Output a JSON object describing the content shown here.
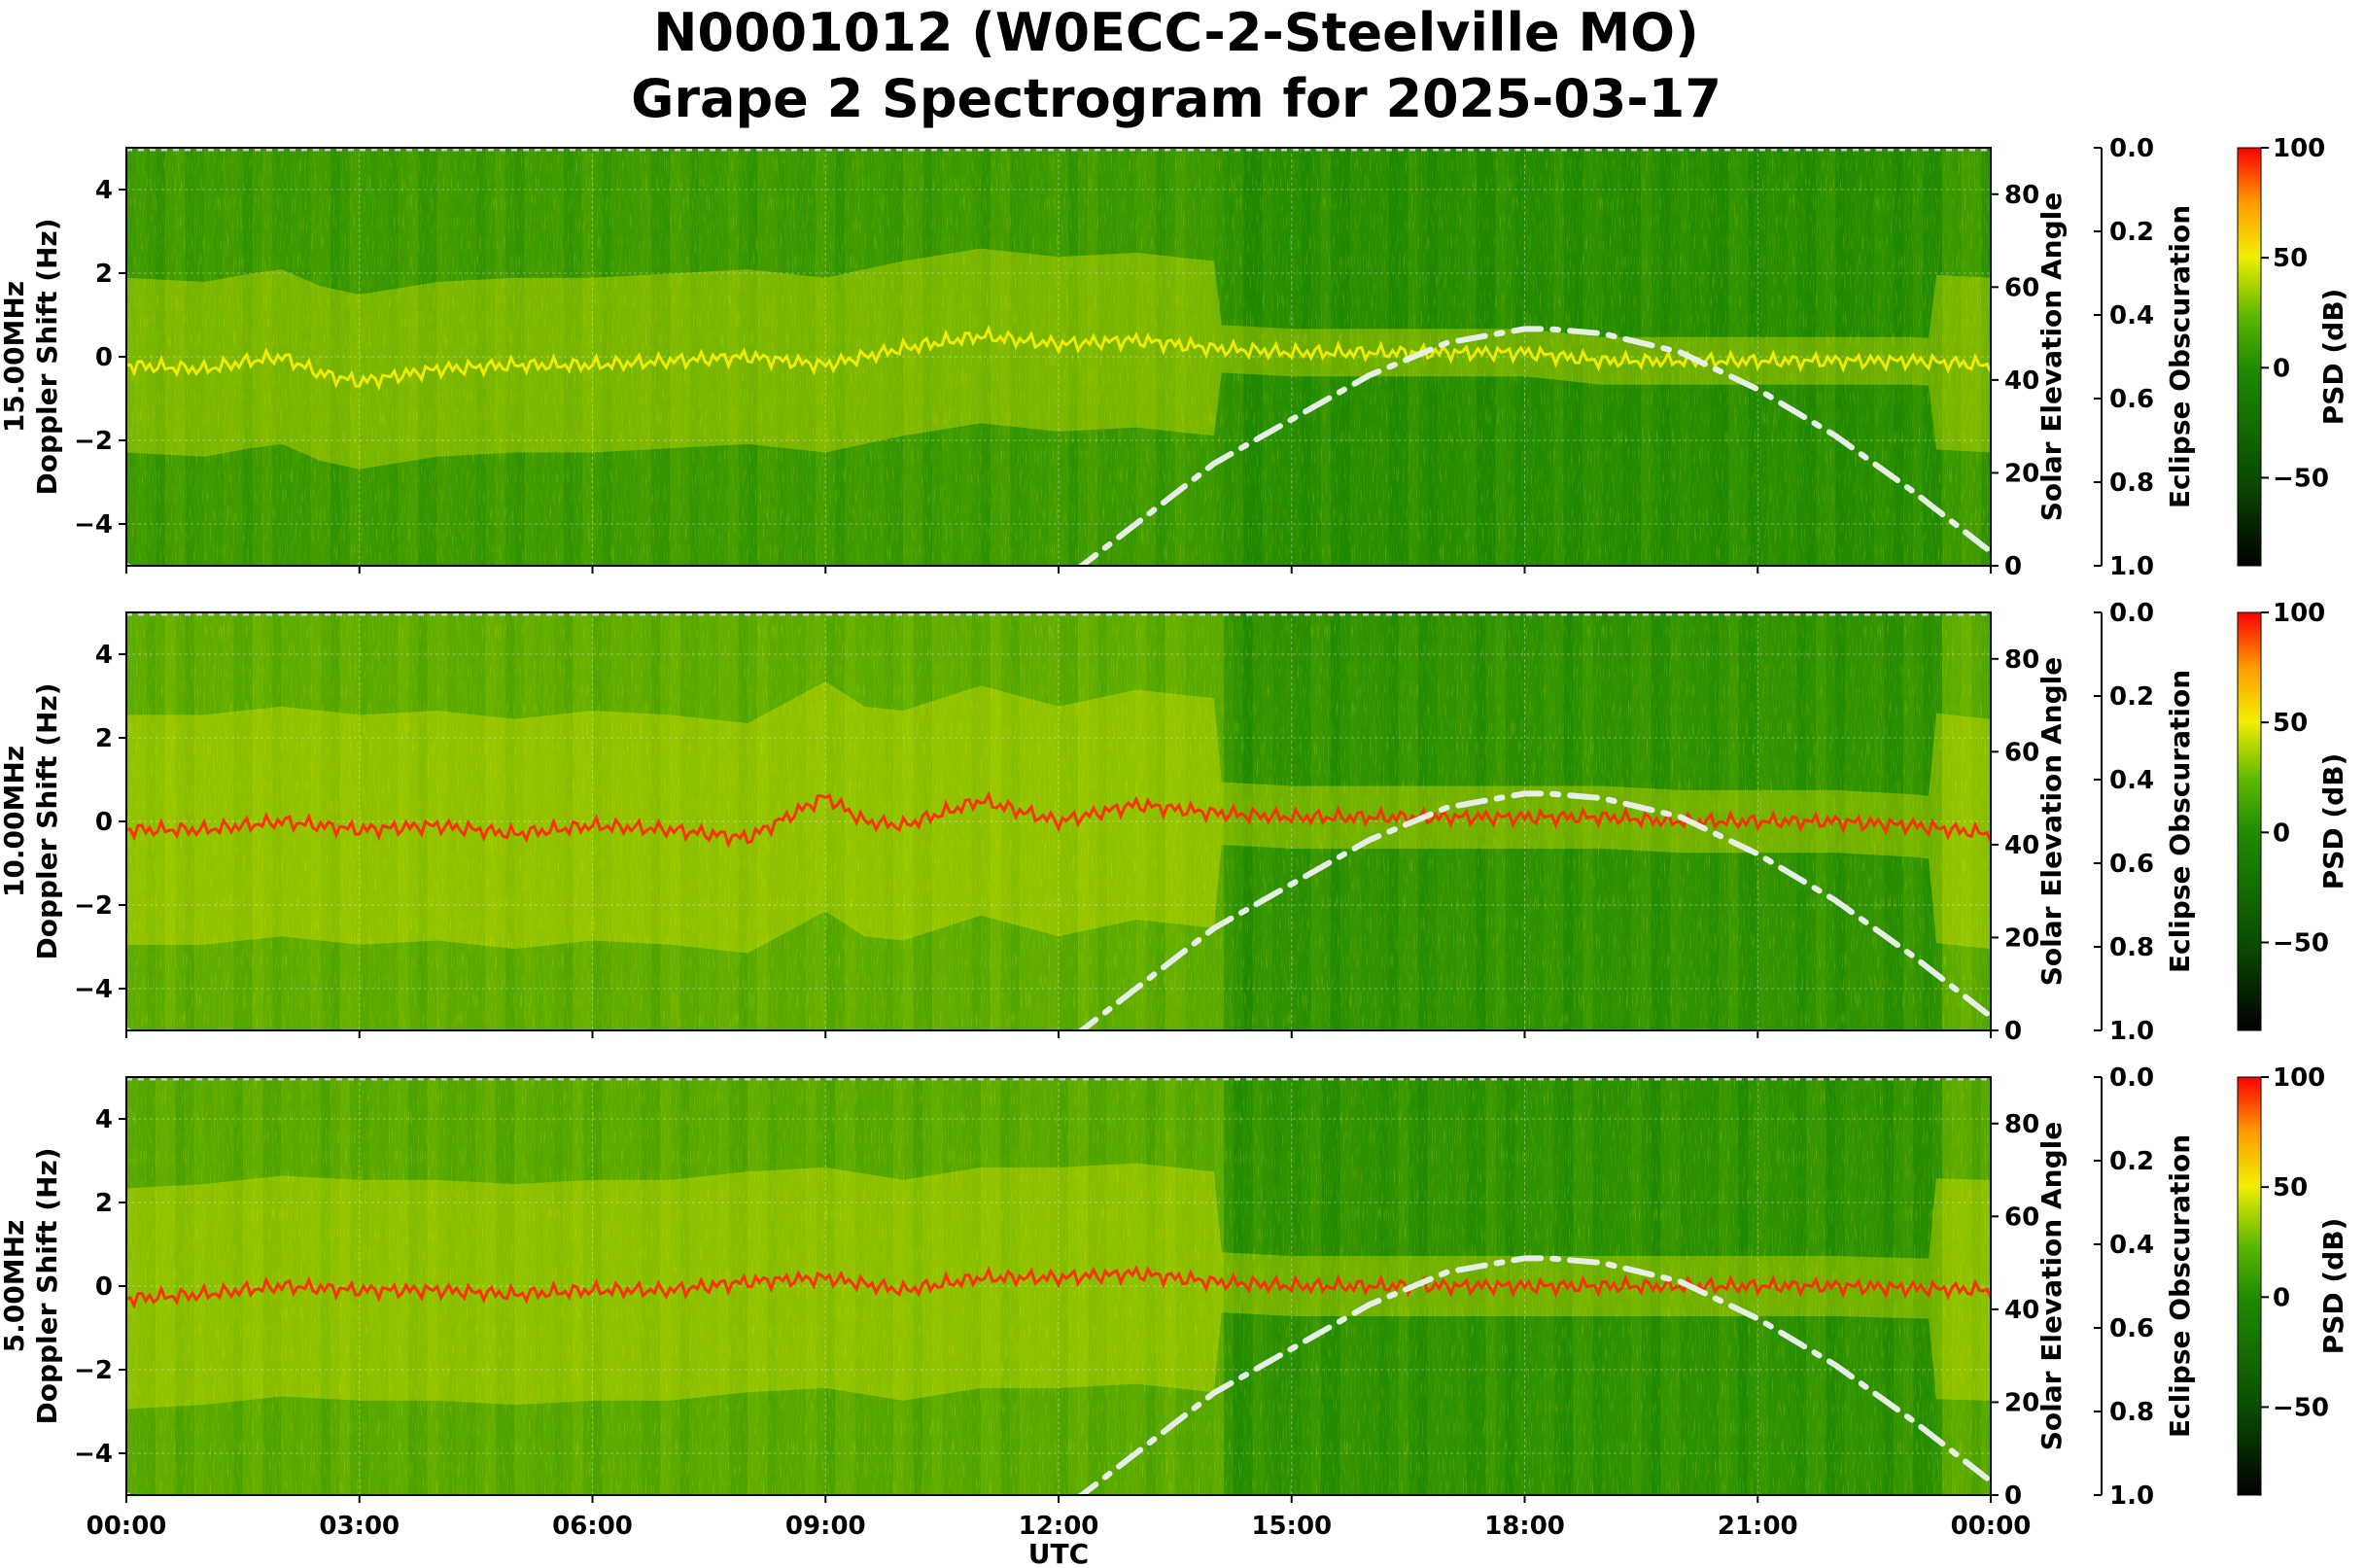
{
  "figure": {
    "title_line1": "N0001012 (W0ECC-2-Steelville MO)",
    "title_line2": "Grape 2 Spectrogram for 2025-03-17"
  },
  "colors": {
    "spectrogram_low": "#0a3a00",
    "spectrogram_mid": "#1f8a00",
    "spectrogram_high_yellow": "#f2ee00",
    "spectrogram_peak_red": "#ff2a00",
    "solar_curve": "#e6efe6"
  },
  "chart_data": [
    {
      "type": "heatmap",
      "panel_label": "15.00MHz\nDoppler Shift (Hz)",
      "panel_label_line1": "15.00MHz",
      "panel_label_line2": "Doppler Shift (Hz)",
      "x_label": "",
      "x_ticks": [
        "00:00",
        "03:00",
        "06:00",
        "09:00",
        "12:00",
        "15:00",
        "18:00",
        "21:00",
        "00:00"
      ],
      "x_range_hours": [
        0,
        24
      ],
      "y_range": [
        -5,
        5
      ],
      "y_ticks": [
        "4",
        "2",
        "0",
        "−2",
        "−4"
      ],
      "y_tick_values": [
        4,
        2,
        0,
        -2,
        -4
      ],
      "solar_axis_label": "Solar Elevation Angle",
      "solar_range": [
        0,
        90
      ],
      "solar_ticks": [
        "80",
        "60",
        "40",
        "20",
        "0"
      ],
      "solar_tick_values": [
        80,
        60,
        40,
        20,
        0
      ],
      "eclipse_label": "Eclipse Obscuration",
      "eclipse_ticks": [
        "0.0",
        "0.2",
        "0.4",
        "0.6",
        "0.8",
        "1.0"
      ],
      "eclipse_tick_values": [
        0.0,
        0.2,
        0.4,
        0.6,
        0.8,
        1.0
      ],
      "colorbar_label": "PSD (dB)",
      "colorbar_ticks": [
        "100",
        "50",
        "0",
        "−50"
      ],
      "colorbar_tick_values": [
        100,
        50,
        0,
        -50
      ],
      "colorbar_range": [
        -90,
        100
      ],
      "solar_elevation": [
        [
          0,
          0
        ],
        [
          1,
          -8
        ],
        [
          12,
          -3
        ],
        [
          12.3,
          0
        ],
        [
          14,
          22
        ],
        [
          16,
          41
        ],
        [
          17,
          48
        ],
        [
          18,
          51
        ],
        [
          18.3,
          51
        ],
        [
          19,
          50
        ],
        [
          20,
          46
        ],
        [
          21,
          38
        ],
        [
          22,
          28
        ],
        [
          23,
          16
        ],
        [
          24,
          3
        ]
      ],
      "background_intensity": 0.25,
      "carrier_trace": [
        [
          0,
          -0.2
        ],
        [
          1,
          -0.3
        ],
        [
          1.6,
          -0.1
        ],
        [
          2,
          0
        ],
        [
          2.5,
          -0.4
        ],
        [
          3,
          -0.6
        ],
        [
          4,
          -0.3
        ],
        [
          5,
          -0.2
        ],
        [
          6,
          -0.2
        ],
        [
          7,
          -0.1
        ],
        [
          8,
          0
        ],
        [
          9,
          -0.2
        ],
        [
          10,
          0.2
        ],
        [
          11,
          0.5
        ],
        [
          12,
          0.3
        ],
        [
          13,
          0.4
        ],
        [
          14,
          0.2
        ],
        [
          15,
          0.1
        ],
        [
          16,
          0.1
        ],
        [
          17,
          0.1
        ],
        [
          18,
          0.1
        ],
        [
          19,
          -0.1
        ],
        [
          20,
          -0.1
        ],
        [
          21,
          -0.1
        ],
        [
          22,
          -0.1
        ],
        [
          23,
          -0.1
        ],
        [
          24,
          -0.2
        ]
      ]
    },
    {
      "type": "heatmap",
      "panel_label_line1": "10.00MHz",
      "panel_label_line2": "Doppler Shift (Hz)",
      "x_label": "",
      "x_ticks": [
        "00:00",
        "03:00",
        "06:00",
        "09:00",
        "12:00",
        "15:00",
        "18:00",
        "21:00",
        "00:00"
      ],
      "x_range_hours": [
        0,
        24
      ],
      "y_range": [
        -5,
        5
      ],
      "y_ticks": [
        "4",
        "2",
        "0",
        "−2",
        "−4"
      ],
      "y_tick_values": [
        4,
        2,
        0,
        -2,
        -4
      ],
      "solar_axis_label": "Solar Elevation Angle",
      "solar_range": [
        0,
        90
      ],
      "solar_ticks": [
        "80",
        "60",
        "40",
        "20",
        "0"
      ],
      "solar_tick_values": [
        80,
        60,
        40,
        20,
        0
      ],
      "eclipse_label": "Eclipse Obscuration",
      "eclipse_ticks": [
        "0.0",
        "0.2",
        "0.4",
        "0.6",
        "0.8",
        "1.0"
      ],
      "eclipse_tick_values": [
        0.0,
        0.2,
        0.4,
        0.6,
        0.8,
        1.0
      ],
      "colorbar_label": "PSD (dB)",
      "colorbar_ticks": [
        "100",
        "50",
        "0",
        "−50"
      ],
      "colorbar_tick_values": [
        100,
        50,
        0,
        -50
      ],
      "colorbar_range": [
        -90,
        100
      ],
      "solar_elevation": [
        [
          0,
          0
        ],
        [
          1,
          -8
        ],
        [
          12,
          -3
        ],
        [
          12.3,
          0
        ],
        [
          14,
          22
        ],
        [
          16,
          41
        ],
        [
          17,
          48
        ],
        [
          18,
          51
        ],
        [
          18.3,
          51
        ],
        [
          19,
          50
        ],
        [
          20,
          46
        ],
        [
          21,
          38
        ],
        [
          22,
          28
        ],
        [
          23,
          16
        ],
        [
          24,
          3
        ]
      ],
      "background_intensity": 0.55,
      "carrier_trace": [
        [
          0,
          -0.2
        ],
        [
          1,
          -0.2
        ],
        [
          2,
          0
        ],
        [
          3,
          -0.2
        ],
        [
          4,
          -0.1
        ],
        [
          5,
          -0.3
        ],
        [
          6,
          -0.1
        ],
        [
          7,
          -0.2
        ],
        [
          8,
          -0.4
        ],
        [
          9,
          0.6
        ],
        [
          9.5,
          0
        ],
        [
          10,
          -0.1
        ],
        [
          11,
          0.5
        ],
        [
          12,
          0
        ],
        [
          13,
          0.4
        ],
        [
          14,
          0.2
        ],
        [
          15,
          0.1
        ],
        [
          16,
          0.1
        ],
        [
          17,
          0.1
        ],
        [
          18,
          0.1
        ],
        [
          19,
          0.1
        ],
        [
          20,
          0
        ],
        [
          21,
          0
        ],
        [
          22,
          0
        ],
        [
          23,
          -0.1
        ],
        [
          24,
          -0.3
        ]
      ]
    },
    {
      "type": "heatmap",
      "panel_label_line1": "5.00MHz",
      "panel_label_line2": "Doppler Shift (Hz)",
      "x_label": "UTC",
      "x_ticks": [
        "00:00",
        "03:00",
        "06:00",
        "09:00",
        "12:00",
        "15:00",
        "18:00",
        "21:00",
        "00:00"
      ],
      "x_range_hours": [
        0,
        24
      ],
      "y_range": [
        -5,
        5
      ],
      "y_ticks": [
        "4",
        "2",
        "0",
        "−2",
        "−4"
      ],
      "y_tick_values": [
        4,
        2,
        0,
        -2,
        -4
      ],
      "solar_axis_label": "Solar Elevation Angle",
      "solar_range": [
        0,
        90
      ],
      "solar_ticks": [
        "80",
        "60",
        "40",
        "20",
        "0"
      ],
      "solar_tick_values": [
        80,
        60,
        40,
        20,
        0
      ],
      "eclipse_label": "Eclipse Obscuration",
      "eclipse_ticks": [
        "0.0",
        "0.2",
        "0.4",
        "0.6",
        "0.8",
        "1.0"
      ],
      "eclipse_tick_values": [
        0.0,
        0.2,
        0.4,
        0.6,
        0.8,
        1.0
      ],
      "colorbar_label": "PSD (dB)",
      "colorbar_ticks": [
        "100",
        "50",
        "0",
        "−50"
      ],
      "colorbar_tick_values": [
        100,
        50,
        0,
        -50
      ],
      "colorbar_range": [
        -90,
        100
      ],
      "solar_elevation": [
        [
          0,
          0
        ],
        [
          1,
          -8
        ],
        [
          12,
          -3
        ],
        [
          12.3,
          0
        ],
        [
          14,
          22
        ],
        [
          16,
          41
        ],
        [
          17,
          48
        ],
        [
          18,
          51
        ],
        [
          18.3,
          51
        ],
        [
          19,
          50
        ],
        [
          20,
          46
        ],
        [
          21,
          38
        ],
        [
          22,
          28
        ],
        [
          23,
          16
        ],
        [
          24,
          3
        ]
      ],
      "background_intensity": 0.5,
      "carrier_trace": [
        [
          0,
          -0.3
        ],
        [
          1,
          -0.2
        ],
        [
          2,
          0
        ],
        [
          3,
          -0.1
        ],
        [
          4,
          -0.1
        ],
        [
          5,
          -0.2
        ],
        [
          6,
          -0.1
        ],
        [
          7,
          -0.1
        ],
        [
          8,
          0.1
        ],
        [
          9,
          0.2
        ],
        [
          10,
          -0.1
        ],
        [
          11,
          0.2
        ],
        [
          12,
          0.2
        ],
        [
          13,
          0.3
        ],
        [
          14,
          0.1
        ],
        [
          15,
          0
        ],
        [
          16,
          0
        ],
        [
          18,
          0
        ],
        [
          20,
          0
        ],
        [
          22,
          0
        ],
        [
          24,
          -0.1
        ]
      ]
    }
  ]
}
